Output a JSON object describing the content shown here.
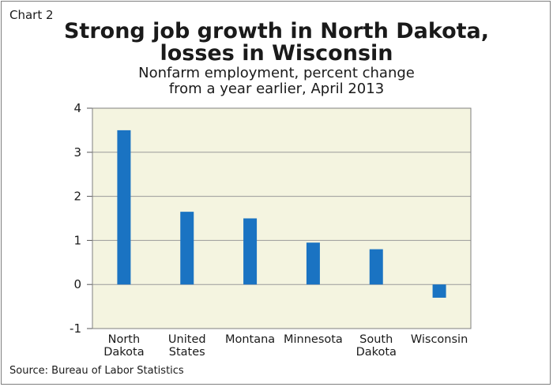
{
  "chart_label": "Chart 2",
  "title_line1": "Strong job growth in North Dakota,",
  "title_line2": "losses in Wisconsin",
  "subtitle_line1": "Nonfarm employment, percent change",
  "subtitle_line2": "from a year earlier, April 2013",
  "source": "Source: Bureau of Labor Statistics",
  "colors": {
    "bar": "#1a73c2",
    "plot_background": "#f4f4e0",
    "gridline": "#9a9a9a"
  },
  "chart_data": {
    "type": "bar",
    "categories": [
      [
        "North",
        "Dakota"
      ],
      [
        "United",
        "States"
      ],
      [
        "Montana"
      ],
      [
        "Minnesota"
      ],
      [
        "South",
        "Dakota"
      ],
      [
        "Wisconsin"
      ]
    ],
    "values": [
      3.5,
      1.65,
      1.5,
      0.95,
      0.8,
      -0.3
    ],
    "ylim": [
      -1,
      4
    ],
    "yticks": [
      -1,
      0,
      1,
      2,
      3,
      4
    ],
    "grid": true
  }
}
